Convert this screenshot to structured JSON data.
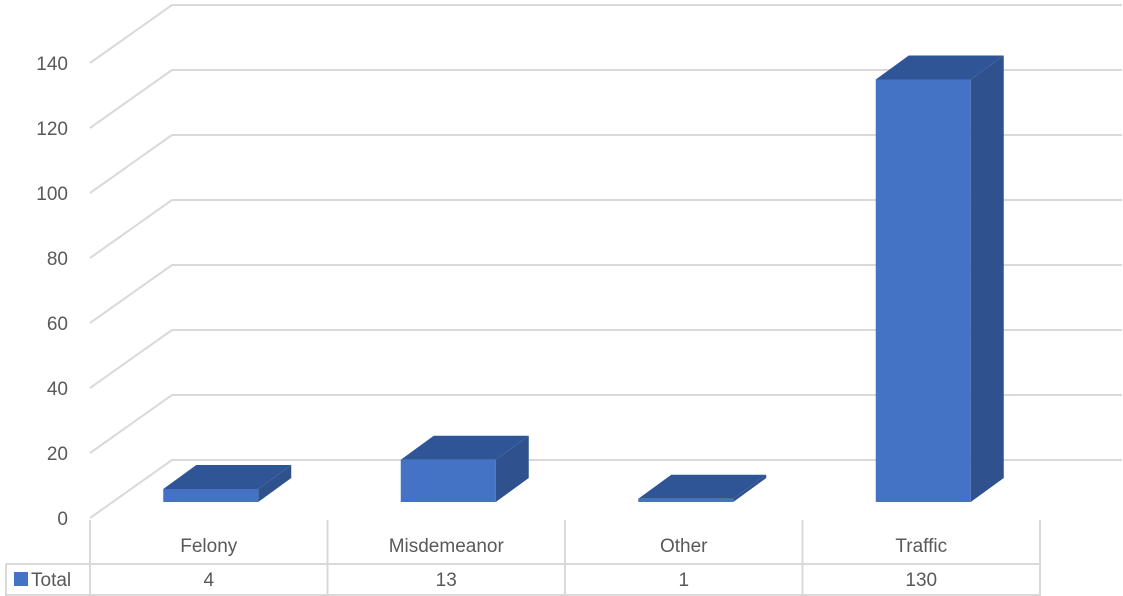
{
  "chart_data": {
    "type": "bar",
    "style": "3d-column-with-data-table",
    "categories": [
      "Felony",
      "Misdemeanor",
      "Other",
      "Traffic"
    ],
    "series": [
      {
        "name": "Total",
        "values": [
          4,
          13,
          1,
          130
        ],
        "color": "#4472C4"
      }
    ],
    "ylim": [
      0,
      140
    ],
    "yticks": [
      0,
      20,
      40,
      60,
      80,
      100,
      120,
      140
    ],
    "grid": true,
    "legend": "data-table",
    "colors": {
      "bar_front": "#4472C4",
      "bar_side": "#2F528F",
      "bar_top": "#2F5597",
      "grid": "#D9D9D9",
      "text": "#595959"
    }
  }
}
